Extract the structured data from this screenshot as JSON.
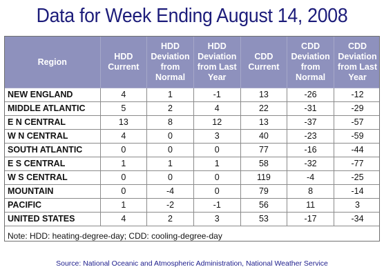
{
  "title": "Data for Week Ending August 14, 2008",
  "table": {
    "headers": [
      "Region",
      "HDD Current",
      "HDD Deviation from Normal",
      "HDD Deviation from Last Year",
      "CDD Current",
      "CDD Deviation from Normal",
      "CDD Deviation from Last Year"
    ],
    "rows": [
      [
        "NEW ENGLAND",
        "4",
        "1",
        "-1",
        "13",
        "-26",
        "-12"
      ],
      [
        "MIDDLE ATLANTIC",
        "5",
        "2",
        "4",
        "22",
        "-31",
        "-29"
      ],
      [
        "E N CENTRAL",
        "13",
        "8",
        "12",
        "13",
        "-37",
        "-57"
      ],
      [
        "W N CENTRAL",
        "4",
        "0",
        "3",
        "40",
        "-23",
        "-59"
      ],
      [
        "SOUTH ATLANTIC",
        "0",
        "0",
        "0",
        "77",
        "-16",
        "-44"
      ],
      [
        "E S CENTRAL",
        "1",
        "1",
        "1",
        "58",
        "-32",
        "-77"
      ],
      [
        "W S CENTRAL",
        "0",
        "0",
        "0",
        "119",
        "-4",
        "-25"
      ],
      [
        "MOUNTAIN",
        "0",
        "-4",
        "0",
        "79",
        "8",
        "-14"
      ],
      [
        "PACIFIC",
        "1",
        "-2",
        "-1",
        "56",
        "11",
        "3"
      ],
      [
        "UNITED STATES",
        "4",
        "2",
        "3",
        "53",
        "-17",
        "-34"
      ]
    ]
  },
  "note": "Note: HDD: heating-degree-day; CDD: cooling-degree-day",
  "source": "Source:  National Oceanic and Atmospheric Administration, National Weather Service",
  "colors": {
    "header_background": "#8e91bd",
    "title_text": "#1c1c7a",
    "source_text": "#1c1c8c"
  }
}
